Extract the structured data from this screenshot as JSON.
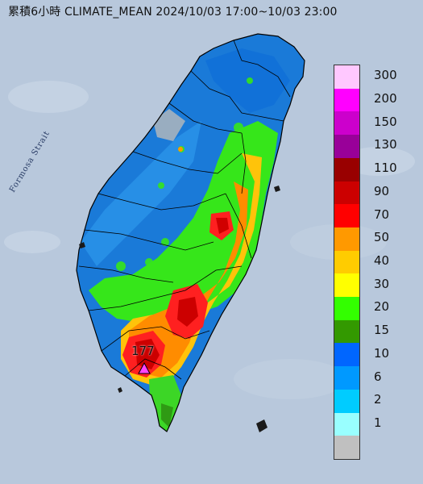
{
  "title": "累積6小時 CLIMATE_MEAN 2024/10/03 17:00~10/03 23:00",
  "strait_label": "Formosa Strait",
  "max_marker": {
    "value": "177"
  },
  "colors": {
    "sea": "#b8c8dc",
    "land_base": "#1a7ad8",
    "border": "#000000"
  },
  "legend": {
    "items": [
      {
        "label": "300",
        "color": "#ffc8ff"
      },
      {
        "label": "200",
        "color": "#ff00ff"
      },
      {
        "label": "150",
        "color": "#cc00cc"
      },
      {
        "label": "130",
        "color": "#990099"
      },
      {
        "label": "110",
        "color": "#990000"
      },
      {
        "label": "90",
        "color": "#cc0000"
      },
      {
        "label": "70",
        "color": "#ff0000"
      },
      {
        "label": "50",
        "color": "#ff9900"
      },
      {
        "label": "40",
        "color": "#ffcc00"
      },
      {
        "label": "30",
        "color": "#ffff00"
      },
      {
        "label": "20",
        "color": "#33ff00"
      },
      {
        "label": "15",
        "color": "#339900"
      },
      {
        "label": "10",
        "color": "#0066ff"
      },
      {
        "label": "6",
        "color": "#0099ff"
      },
      {
        "label": "2",
        "color": "#00ccff"
      },
      {
        "label": "1",
        "color": "#99ffff"
      },
      {
        "label": "",
        "color": "#c0c0c0"
      }
    ]
  }
}
